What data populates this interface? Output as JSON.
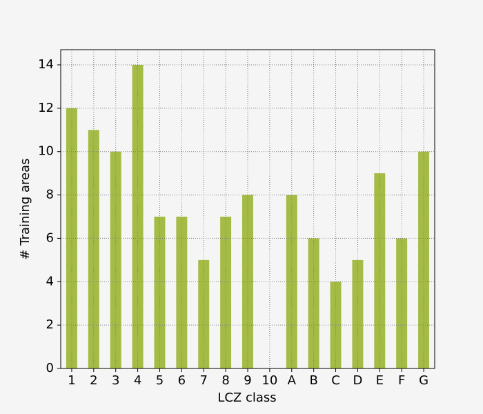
{
  "chart_data": {
    "type": "bar",
    "xlabel": "LCZ class",
    "ylabel": "# Training areas",
    "categories": [
      "1",
      "2",
      "3",
      "4",
      "5",
      "6",
      "7",
      "8",
      "9",
      "10",
      "A",
      "B",
      "C",
      "D",
      "E",
      "F",
      "G"
    ],
    "values": [
      12,
      11,
      10,
      14,
      7,
      7,
      5,
      7,
      8,
      0,
      8,
      6,
      4,
      5,
      9,
      6,
      10
    ],
    "color": "#a4bb45",
    "ylim": [
      0,
      14.7
    ],
    "yticks": [
      0,
      2,
      4,
      6,
      8,
      10,
      12,
      14
    ],
    "grid": true
  }
}
